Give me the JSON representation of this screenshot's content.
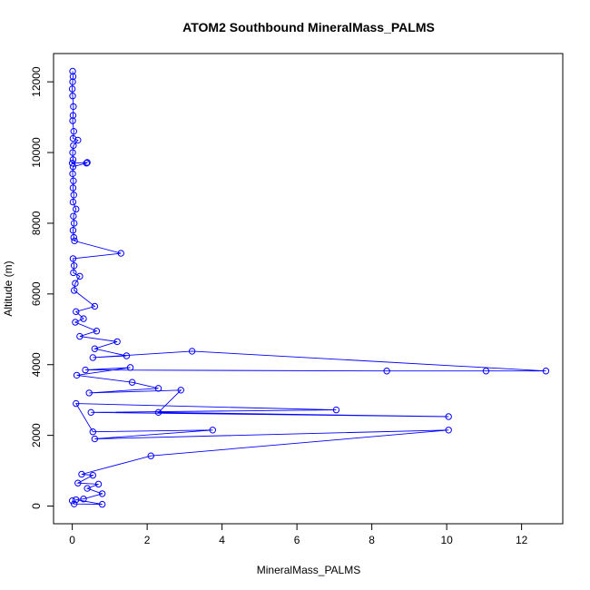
{
  "chart_data": {
    "type": "line",
    "title": "ATOM2 Southbound MineralMass_PALMS",
    "xlabel": "MineralMass_PALMS",
    "ylabel": "Altitude (m)",
    "xlim": [
      -0.5,
      13.1
    ],
    "ylim": [
      -500,
      12800
    ],
    "x_ticks": [
      0,
      2,
      4,
      6,
      8,
      10,
      12
    ],
    "y_ticks": [
      0,
      2000,
      4000,
      6000,
      8000,
      10000,
      12000
    ],
    "grid": false,
    "legend": "none",
    "marker": "open-circle",
    "color": "#0000ff",
    "series": [
      {
        "points": [
          [
            0.01,
            12300
          ],
          [
            0.02,
            12150
          ],
          [
            0.01,
            12000
          ],
          [
            0.0,
            11800
          ],
          [
            0.01,
            11600
          ],
          [
            0.03,
            11300
          ],
          [
            0.02,
            11050
          ],
          [
            0.01,
            10900
          ],
          [
            0.04,
            10600
          ],
          [
            0.02,
            10400
          ],
          [
            0.15,
            10350
          ],
          [
            0.03,
            10200
          ],
          [
            0.01,
            10000
          ],
          [
            0.02,
            9800
          ],
          [
            0.0,
            9700
          ],
          [
            0.4,
            9720
          ],
          [
            0.38,
            9700
          ],
          [
            0.02,
            9600
          ],
          [
            0.01,
            9400
          ],
          [
            0.03,
            9200
          ],
          [
            0.02,
            9000
          ],
          [
            0.04,
            8800
          ],
          [
            0.02,
            8600
          ],
          [
            0.1,
            8400
          ],
          [
            0.03,
            8200
          ],
          [
            0.05,
            8000
          ],
          [
            0.02,
            7800
          ],
          [
            0.04,
            7600
          ],
          [
            0.06,
            7500
          ],
          [
            1.3,
            7150
          ],
          [
            0.02,
            7000
          ],
          [
            0.05,
            6800
          ],
          [
            0.03,
            6600
          ],
          [
            0.2,
            6500
          ],
          [
            0.08,
            6300
          ],
          [
            0.05,
            6100
          ],
          [
            0.6,
            5650
          ],
          [
            0.1,
            5500
          ],
          [
            0.3,
            5300
          ],
          [
            0.08,
            5200
          ],
          [
            0.65,
            4950
          ],
          [
            0.2,
            4800
          ],
          [
            1.2,
            4650
          ],
          [
            0.6,
            4450
          ],
          [
            1.45,
            4250
          ],
          [
            0.55,
            4200
          ],
          [
            3.2,
            4380
          ],
          [
            12.65,
            3820
          ],
          [
            11.05,
            3820
          ],
          [
            8.4,
            3820
          ],
          [
            0.35,
            3850
          ],
          [
            1.55,
            3920
          ],
          [
            0.12,
            3700
          ],
          [
            1.6,
            3500
          ],
          [
            2.3,
            3330
          ],
          [
            0.45,
            3200
          ],
          [
            2.9,
            3280
          ],
          [
            2.3,
            2650
          ],
          [
            10.05,
            2530
          ],
          [
            0.5,
            2650
          ],
          [
            7.05,
            2720
          ],
          [
            0.1,
            2900
          ],
          [
            0.55,
            2100
          ],
          [
            3.75,
            2150
          ],
          [
            0.6,
            1900
          ],
          [
            10.05,
            2150
          ],
          [
            2.1,
            1420
          ],
          [
            0.25,
            900
          ],
          [
            0.55,
            870
          ],
          [
            0.15,
            650
          ],
          [
            0.7,
            620
          ],
          [
            0.4,
            500
          ],
          [
            0.8,
            350
          ],
          [
            0.3,
            200
          ],
          [
            0.1,
            180
          ],
          [
            0.8,
            50
          ],
          [
            0.05,
            60
          ],
          [
            0.0,
            150
          ]
        ]
      }
    ]
  }
}
